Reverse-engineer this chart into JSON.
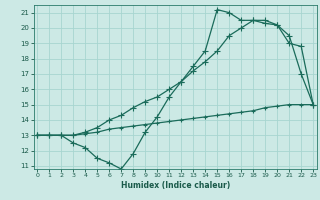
{
  "line1_spiky": {
    "x": [
      0,
      1,
      2,
      3,
      4,
      5,
      6,
      7,
      8,
      9,
      10,
      11,
      12,
      13,
      14,
      15,
      16,
      17,
      18,
      19,
      20,
      21,
      22,
      23
    ],
    "y": [
      13,
      13,
      13,
      12.5,
      12.2,
      11.5,
      11.2,
      10.8,
      11.8,
      13.2,
      14.2,
      15.5,
      16.5,
      17.5,
      18.5,
      21.2,
      21.0,
      20.5,
      20.5,
      20.3,
      20.2,
      19.0,
      18.8,
      15.0
    ],
    "color": "#1a6b5a",
    "marker": "+",
    "markersize": 4,
    "linewidth": 0.9
  },
  "line2_smooth": {
    "x": [
      0,
      1,
      2,
      3,
      4,
      5,
      6,
      7,
      8,
      9,
      10,
      11,
      12,
      13,
      14,
      15,
      16,
      17,
      18,
      19,
      20,
      21,
      22,
      23
    ],
    "y": [
      13,
      13,
      13,
      13,
      13.2,
      13.5,
      14.0,
      14.3,
      14.8,
      15.2,
      15.5,
      16.0,
      16.5,
      17.2,
      17.8,
      18.5,
      19.5,
      20.0,
      20.5,
      20.5,
      20.2,
      19.5,
      17.0,
      15.0
    ],
    "color": "#1a6b5a",
    "marker": "+",
    "markersize": 4,
    "linewidth": 0.9
  },
  "line3_flat": {
    "x": [
      0,
      1,
      2,
      3,
      4,
      5,
      6,
      7,
      8,
      9,
      10,
      11,
      12,
      13,
      14,
      15,
      16,
      17,
      18,
      19,
      20,
      21,
      22,
      23
    ],
    "y": [
      13,
      13,
      13,
      13,
      13.1,
      13.2,
      13.4,
      13.5,
      13.6,
      13.7,
      13.8,
      13.9,
      14.0,
      14.1,
      14.2,
      14.3,
      14.4,
      14.5,
      14.6,
      14.8,
      14.9,
      15.0,
      15.0,
      15.0
    ],
    "color": "#1a6b5a",
    "marker": "+",
    "markersize": 3,
    "linewidth": 0.9,
    "linestyle": "-"
  },
  "xlim": [
    -0.3,
    23.3
  ],
  "ylim": [
    10.8,
    21.5
  ],
  "xticks": [
    0,
    1,
    2,
    3,
    4,
    5,
    6,
    7,
    8,
    9,
    10,
    11,
    12,
    13,
    14,
    15,
    16,
    17,
    18,
    19,
    20,
    21,
    22,
    23
  ],
  "yticks": [
    11,
    12,
    13,
    14,
    15,
    16,
    17,
    18,
    19,
    20,
    21
  ],
  "xlabel": "Humidex (Indice chaleur)",
  "background_color": "#cce9e5",
  "grid_color": "#a8d5d0",
  "axis_color": "#2a7a6a",
  "label_color": "#1a5a4a",
  "tick_color": "#1a5a4a"
}
